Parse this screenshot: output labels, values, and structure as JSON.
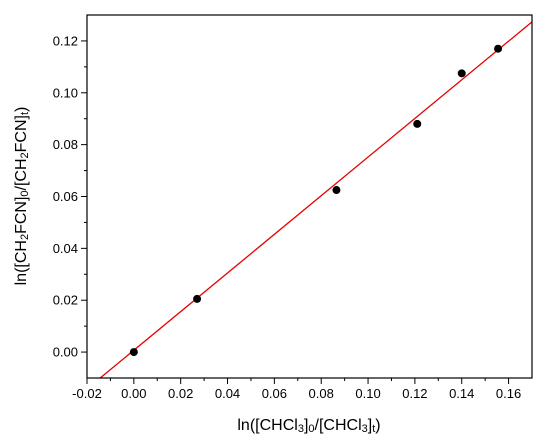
{
  "chart_data": {
    "type": "scatter",
    "title": "",
    "xlabel": {
      "parts": [
        {
          "t": "ln([CHCl",
          "s": ""
        },
        {
          "t": "3",
          "s": "sub"
        },
        {
          "t": "]",
          "s": ""
        },
        {
          "t": "0",
          "s": "sub"
        },
        {
          "t": "/[CHCl",
          "s": ""
        },
        {
          "t": "3",
          "s": "sub"
        },
        {
          "t": "]",
          "s": ""
        },
        {
          "t": "t",
          "s": "sub"
        },
        {
          "t": ")",
          "s": ""
        }
      ]
    },
    "ylabel": {
      "parts": [
        {
          "t": "ln([CH",
          "s": ""
        },
        {
          "t": "2",
          "s": "sub"
        },
        {
          "t": "FCN]",
          "s": ""
        },
        {
          "t": "0",
          "s": "sub"
        },
        {
          "t": "/[CH",
          "s": ""
        },
        {
          "t": "2",
          "s": "sub"
        },
        {
          "t": "FCN]",
          "s": ""
        },
        {
          "t": "t",
          "s": "sub"
        },
        {
          "t": ")",
          "s": ""
        }
      ]
    },
    "xlim": [
      -0.02,
      0.17
    ],
    "ylim": [
      -0.01,
      0.13
    ],
    "xticks": [
      -0.02,
      0.0,
      0.02,
      0.04,
      0.06,
      0.08,
      0.1,
      0.12,
      0.14,
      0.16
    ],
    "xtick_labels": [
      "-0.02",
      "0.00",
      "0.02",
      "0.04",
      "0.06",
      "0.08",
      "0.10",
      "0.12",
      "0.14",
      "0.16"
    ],
    "yticks": [
      0.0,
      0.02,
      0.04,
      0.06,
      0.08,
      0.1,
      0.12
    ],
    "ytick_labels": [
      "0.00",
      "0.02",
      "0.04",
      "0.06",
      "0.08",
      "0.10",
      "0.12"
    ],
    "points": [
      {
        "x": 0.0,
        "y": 0.0
      },
      {
        "x": 0.027,
        "y": 0.0205
      },
      {
        "x": 0.0865,
        "y": 0.0625
      },
      {
        "x": 0.121,
        "y": 0.088
      },
      {
        "x": 0.14,
        "y": 0.1075
      },
      {
        "x": 0.1555,
        "y": 0.117
      }
    ],
    "fit_line": {
      "slope": 0.745,
      "intercept": 0.0007,
      "color": "#e60000"
    },
    "marker_color": "#000000",
    "grid": false
  }
}
